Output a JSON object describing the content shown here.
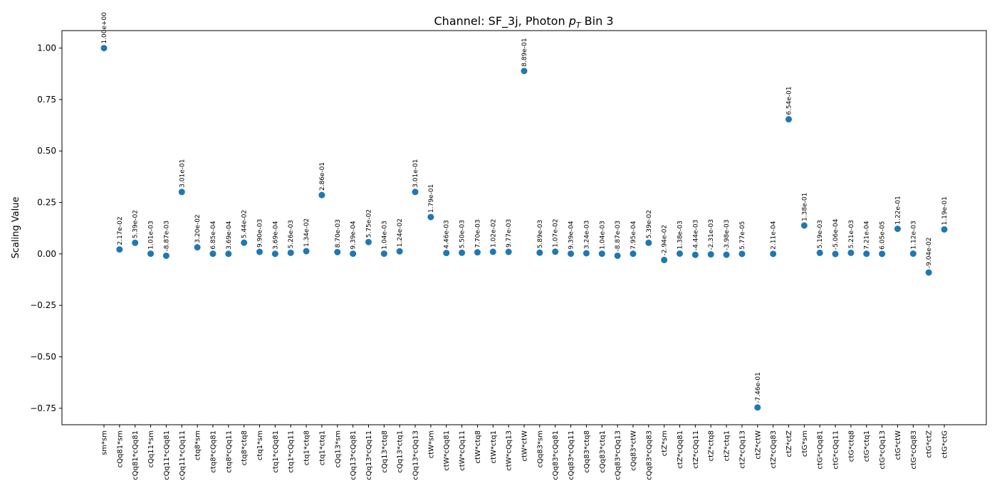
{
  "colors": {
    "point": "#1f77b4",
    "axis": "#000000",
    "background": "#ffffff"
  },
  "chart_data": {
    "type": "scatter",
    "title_prefix": "Channel: SF_3j, Photon ",
    "title_math": "p",
    "title_math_sub": "T",
    "title_suffix": " Bin 3",
    "xlabel": "",
    "ylabel": "Scaling Value",
    "ylim": [
      -0.83,
      1.085
    ],
    "yticks": [
      -0.75,
      -0.5,
      -0.25,
      0.0,
      0.25,
      0.5,
      0.75,
      1.0
    ],
    "ytick_labels": [
      "−0.75",
      "−0.50",
      "−0.25",
      "0.00",
      "0.25",
      "0.50",
      "0.75",
      "1.00"
    ],
    "grid": false,
    "legend": "none",
    "categories": [
      "sm*sm",
      "cQq81*sm",
      "cQq81*cQq81",
      "cQq11*sm",
      "cQq11*cQq81",
      "cQq11*cQq11",
      "ctq8*sm",
      "ctq8*cQq81",
      "ctq8*cQq11",
      "ctq8*ctq8",
      "ctq1*sm",
      "ctq1*cQq81",
      "ctq1*cQq11",
      "ctq1*ctq8",
      "ctq1*ctq1",
      "cQq13*sm",
      "cQq13*cQq81",
      "cQq13*cQq11",
      "cQq13*ctq8",
      "cQq13*ctq1",
      "cQq13*cQq13",
      "ctW*sm",
      "ctW*cQq81",
      "ctW*cQq11",
      "ctW*ctq8",
      "ctW*ctq1",
      "ctW*cQq13",
      "ctW*ctW",
      "cQq83*sm",
      "cQq83*cQq81",
      "cQq83*cQq11",
      "cQq83*ctq8",
      "cQq83*ctq1",
      "cQq83*cQq13",
      "cQq83*ctW",
      "cQq83*cQq83",
      "ctZ*sm",
      "ctZ*cQq81",
      "ctZ*cQq11",
      "ctZ*ctq8",
      "ctZ*ctq1",
      "ctZ*cQq13",
      "ctZ*ctW",
      "ctZ*cQq83",
      "ctZ*ctZ",
      "ctG*sm",
      "ctG*cQq81",
      "ctG*cQq11",
      "ctG*ctq8",
      "ctG*ctq1",
      "ctG*cQq13",
      "ctG*ctW",
      "ctG*cQq83",
      "ctG*ctZ",
      "ctG*ctG"
    ],
    "values": [
      1.0,
      0.0217,
      0.0539,
      0.00101,
      -0.00887,
      0.301,
      0.032,
      0.000685,
      0.000369,
      0.0544,
      0.0099,
      0.000369,
      0.00526,
      0.0134,
      0.286,
      0.0087,
      0.000939,
      0.0575,
      0.00104,
      0.0124,
      0.301,
      0.179,
      0.00446,
      0.0055,
      0.0077,
      0.0102,
      0.00977,
      0.889,
      0.00589,
      0.0107,
      0.000939,
      0.00324,
      0.00104,
      -0.00887,
      0.000795,
      0.0539,
      -0.0294,
      0.00138,
      -0.00444,
      -0.00231,
      -0.00398,
      5.77e-05,
      -0.746,
      0.000211,
      0.654,
      0.138,
      0.00519,
      -0.000506,
      0.00521,
      0.000721,
      6.05e-05,
      0.122,
      0.00112,
      -0.0904,
      0.119
    ],
    "value_labels": [
      "1.00e+00",
      "2.17e-02",
      "5.39e-02",
      "1.01e-03",
      "-8.87e-03",
      "3.01e-01",
      "3.20e-02",
      "6.85e-04",
      "3.69e-04",
      "5.44e-02",
      "9.90e-03",
      "3.69e-04",
      "5.26e-03",
      "1.34e-02",
      "2.86e-01",
      "8.70e-03",
      "9.39e-04",
      "5.75e-02",
      "1.04e-03",
      "1.24e-02",
      "3.01e-01",
      "1.79e-01",
      "4.46e-03",
      "5.50e-03",
      "7.70e-03",
      "1.02e-02",
      "9.77e-03",
      "8.89e-01",
      "5.89e-03",
      "1.07e-02",
      "9.39e-04",
      "3.24e-03",
      "1.04e-03",
      "-8.87e-03",
      "7.95e-04",
      "5.39e-02",
      "-2.94e-02",
      "1.38e-03",
      "-4.44e-03",
      "-2.31e-03",
      "-3.98e-03",
      "5.77e-05",
      "-7.46e-01",
      "2.11e-04",
      "6.54e-01",
      "1.38e-01",
      "5.19e-03",
      "-5.06e-04",
      "5.21e-03",
      "7.21e-04",
      "6.05e-05",
      "1.22e-01",
      "1.12e-03",
      "-9.04e-02",
      "1.19e-01"
    ]
  }
}
